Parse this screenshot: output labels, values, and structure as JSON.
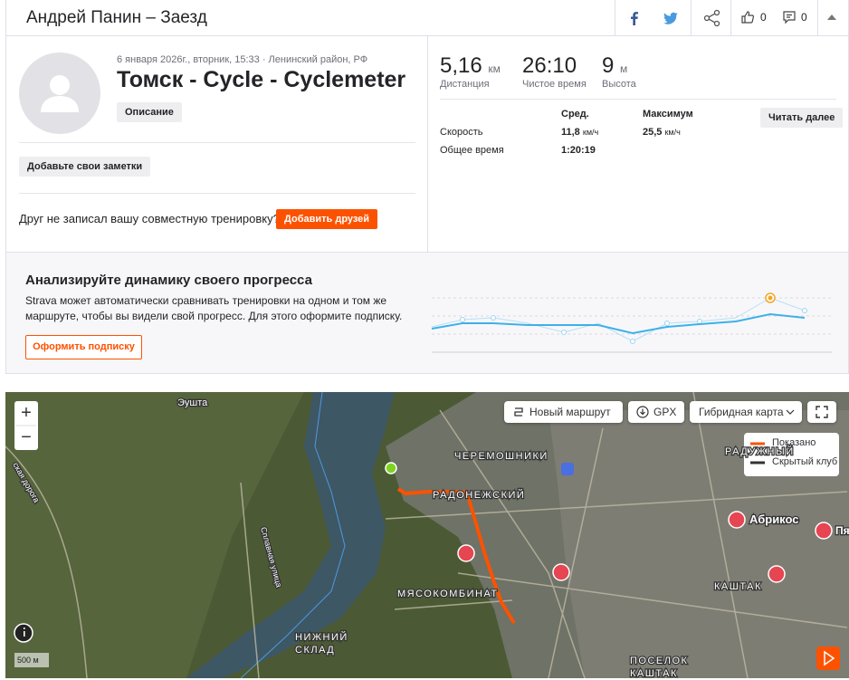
{
  "header": {
    "title": "Андрей Панин – Заезд",
    "kudos": "0",
    "comments": "0"
  },
  "activity": {
    "datetime": "6 января 2026г., вторник, 15:33 · Ленинский район, РФ",
    "name": "Томск - Cycle - Cyclemeter",
    "description_button": "Описание",
    "notes_button": "Добавьте свои заметки",
    "friends_prompt": "Друг не записал вашу совместную тренировку?",
    "add_friends_button": "Добавить друзей"
  },
  "stats": {
    "distance": {
      "value": "5,16",
      "unit": "км",
      "label": "Дистанция"
    },
    "moving_time": {
      "value": "26:10",
      "label": "Чистое время"
    },
    "elevation": {
      "value": "9",
      "unit": "м",
      "label": "Высота"
    }
  },
  "details": {
    "columns": [
      "Сред.",
      "Максимум"
    ],
    "speed": {
      "label": "Скорость",
      "avg": "11,8",
      "avg_unit": "км/ч",
      "max": "25,5",
      "max_unit": "км/ч"
    },
    "elapsed_time": {
      "label": "Общее время",
      "value": "1:20:19"
    },
    "read_more": "Читать далее"
  },
  "upsell": {
    "title": "Анализируйте динамику своего прогресса",
    "text": "Strava может автоматически сравнивать тренировки на одном и том же маршруте, чтобы вы видели свой прогресс. Для этого оформите подписку.",
    "button": "Оформить подписку"
  },
  "map": {
    "controls": {
      "zoom_in": "+",
      "zoom_out": "−",
      "new_route": "Новый маршрут",
      "gpx": "GPX",
      "map_type": "Гибридная карта"
    },
    "legend": [
      "Показано",
      "Скрытый клуб"
    ],
    "scale": "500 м",
    "labels": [
      "Эушта",
      "ЧЕРЕМОШНИКИ",
      "РАДОНЕЖСКИЙ",
      "МЯСОКОМБИНАТ",
      "НИЖНИЙ",
      "СКЛАД",
      "РАДУЖНЫЙ",
      "Абрикос",
      "КАШТАК",
      "ПОСЕЛОК",
      "КАШТАК",
      "Сплавная улица",
      "ская дорога",
      "Пя"
    ]
  }
}
